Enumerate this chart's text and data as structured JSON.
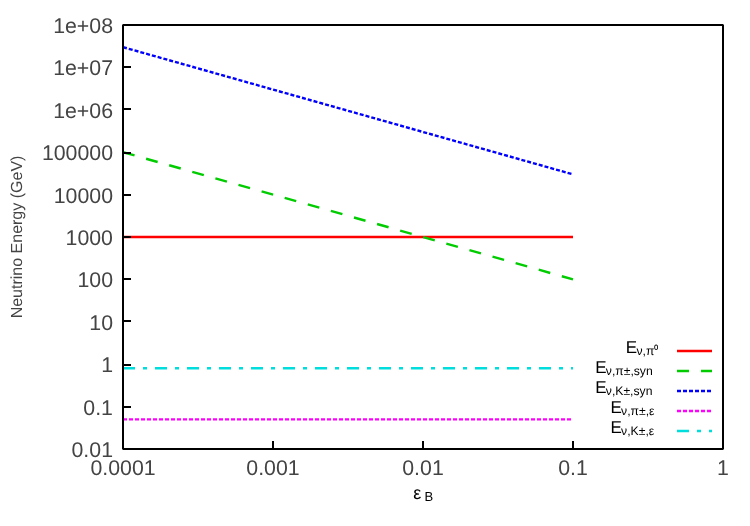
{
  "chart_data": {
    "type": "line",
    "xlabel": "ε$_{B}$",
    "ylabel": "Neutrino Energy (GeV)",
    "log": "xy",
    "grid": false,
    "legend": "bottom right",
    "marker": "none",
    "xlim": [
      0.0001,
      1
    ],
    "xticks": [
      0.0001,
      0.001,
      0.01,
      0.1,
      1
    ],
    "ylim": [
      0.01,
      100000000
    ],
    "yticks": [
      0.01,
      0.1,
      1,
      10,
      100,
      1000,
      10000,
      100000,
      {
        "value": 1000000,
        "label": "1e+06"
      },
      {
        "value": 10000000,
        "label": "1e+07"
      },
      {
        "value": 100000000,
        "label": "1e+08"
      }
    ],
    "x": [
      0.0001,
      0.1
    ],
    "series": [
      {
        "name": "E$_{ν,π⁰}$",
        "color": "#ff0000",
        "line_style": "solid",
        "values": [
          1000,
          1000
        ]
      },
      {
        "name": "E$_{ν,π±,syn}$",
        "color": "#00cc00",
        "line_style": "dashed",
        "values": [
          100000,
          100
        ]
      },
      {
        "name": "E$_{ν,K±,syn}$",
        "color": "#0000ff",
        "line_style": "dotted",
        "values": [
          30000000,
          30000
        ]
      },
      {
        "name": "E$_{ν,π±,ε}$",
        "color": "#ff00ff",
        "line_style": "dotted",
        "values": [
          0.05,
          0.05
        ]
      },
      {
        "name": "E$_{ν,K±,ε}$",
        "color": "#00dddd",
        "line_style": "dashdot",
        "values": [
          0.8,
          0.8
        ]
      }
    ]
  }
}
